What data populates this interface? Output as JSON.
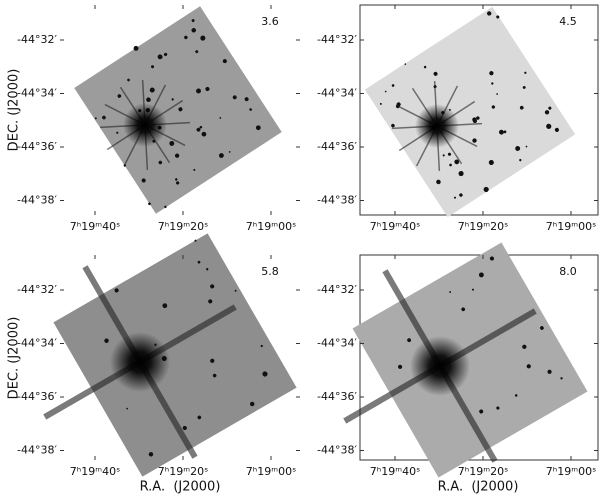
{
  "panels": [
    {
      "band": "3.6",
      "yticks": [
        "-44°32′",
        "-44°34′",
        "-44°36′",
        "-44°38′"
      ],
      "xticks": [
        "7ʰ19ᵐ40ˢ",
        "7ʰ19ᵐ20ˢ",
        "7ʰ19ᵐ00ˢ"
      ]
    },
    {
      "band": "4.5",
      "yticks": [
        "-44°32′",
        "-44°34′",
        "-44°36′",
        "-44°38′"
      ],
      "xticks": [
        "7ʰ19ᵐ40ˢ",
        "7ʰ19ᵐ20ˢ",
        "7ʰ19ᵐ00ˢ"
      ]
    },
    {
      "band": "5.8",
      "yticks": [
        "-44°32′",
        "-44°34′",
        "-44°36′",
        "-44°38′"
      ],
      "xticks": [
        "7ʰ19ᵐ40ˢ",
        "7ʰ19ᵐ20ˢ",
        "7ʰ19ᵐ00ˢ"
      ]
    },
    {
      "band": "8.0",
      "yticks": [
        "-44°32′",
        "-44°34′",
        "-44°36′",
        "-44°38′"
      ],
      "xticks": [
        "7ʰ19ᵐ40ˢ",
        "7ʰ19ᵐ20ˢ",
        "7ʰ19ᵐ00ˢ"
      ]
    }
  ],
  "y_labels": [
    "DEC. (J2000)",
    "DEC. (J2000)"
  ],
  "x_labels": [
    "R.A.  (J2000)",
    "R.A.  (J2000)"
  ]
}
